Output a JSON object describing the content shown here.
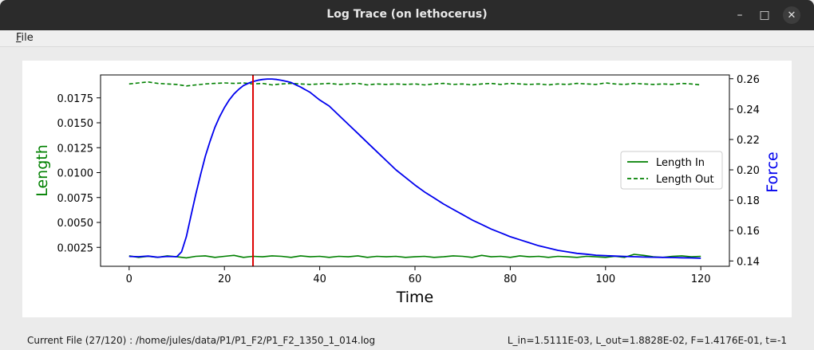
{
  "window": {
    "title": "Log Trace (on lethocerus)",
    "controls": {
      "minimize": "–",
      "maximize": "□",
      "close": "✕"
    }
  },
  "menu": {
    "file_underlined": "F",
    "file_rest": "ile"
  },
  "status": {
    "current_file": "Current File (27/120) : /home/jules/data/P1/P1_F2/P1_F2_1350_1_014.log",
    "values": "L_in=1.5111E-03, L_out=1.8828E-02, F=1.4176E-01, t=-1"
  },
  "chart_data": {
    "type": "line",
    "xlabel": "Time",
    "ylabel_left": "Length",
    "ylabel_right": "Force",
    "xlim": [
      -6,
      126
    ],
    "ylim_left": [
      0.0006,
      0.0198
    ],
    "ylim_right": [
      0.1365,
      0.2625
    ],
    "xticks": [
      0,
      20,
      40,
      60,
      80,
      100,
      120
    ],
    "xtick_labels": [
      "0",
      "20",
      "40",
      "60",
      "80",
      "100",
      "120"
    ],
    "yticks_left": [
      0.0025,
      0.005,
      0.0075,
      0.01,
      0.0125,
      0.015,
      0.0175
    ],
    "ytick_labels_left": [
      "0.0025",
      "0.0050",
      "0.0075",
      "0.0100",
      "0.0125",
      "0.0150",
      "0.0175"
    ],
    "yticks_right": [
      0.14,
      0.16,
      0.18,
      0.2,
      0.22,
      0.24,
      0.26
    ],
    "ytick_labels_right": [
      "0.14",
      "0.16",
      "0.18",
      "0.20",
      "0.22",
      "0.24",
      "0.26"
    ],
    "grid": false,
    "legend_placement": "center-right",
    "cursor_x": 26,
    "colors": {
      "length": "#008000",
      "force": "#0000ee",
      "cursor": "#dd0000"
    },
    "series": [
      {
        "name": "Length In",
        "axis": "left",
        "style": "solid",
        "x": [
          0,
          2,
          4,
          6,
          8,
          10,
          12,
          14,
          16,
          18,
          20,
          22,
          24,
          26,
          28,
          30,
          32,
          34,
          36,
          38,
          40,
          42,
          44,
          46,
          48,
          50,
          52,
          54,
          56,
          58,
          60,
          62,
          64,
          66,
          68,
          70,
          72,
          74,
          76,
          78,
          80,
          82,
          84,
          86,
          88,
          90,
          92,
          94,
          96,
          98,
          100,
          102,
          104,
          106,
          108,
          110,
          112,
          114,
          116,
          118,
          120
        ],
        "y": [
          0.00165,
          0.0015,
          0.0016,
          0.0015,
          0.00165,
          0.00155,
          0.00145,
          0.0016,
          0.00165,
          0.0015,
          0.0016,
          0.0017,
          0.0015,
          0.0016,
          0.00155,
          0.00165,
          0.0016,
          0.0015,
          0.00165,
          0.00155,
          0.0016,
          0.0015,
          0.0016,
          0.00155,
          0.00165,
          0.0015,
          0.0016,
          0.00155,
          0.0016,
          0.0015,
          0.00155,
          0.0016,
          0.0015,
          0.00155,
          0.00165,
          0.0016,
          0.0015,
          0.0017,
          0.00155,
          0.0016,
          0.0015,
          0.00165,
          0.00155,
          0.0016,
          0.0015,
          0.0016,
          0.00155,
          0.0015,
          0.0016,
          0.00155,
          0.0015,
          0.0016,
          0.0015,
          0.0018,
          0.0017,
          0.00155,
          0.0015,
          0.0016,
          0.00165,
          0.00155,
          0.0016
        ]
      },
      {
        "name": "Length Out",
        "axis": "left",
        "style": "dashed",
        "x": [
          0,
          2,
          4,
          6,
          8,
          10,
          12,
          14,
          16,
          18,
          20,
          22,
          24,
          26,
          28,
          30,
          32,
          34,
          36,
          38,
          40,
          42,
          44,
          46,
          48,
          50,
          52,
          54,
          56,
          58,
          60,
          62,
          64,
          66,
          68,
          70,
          72,
          74,
          76,
          78,
          80,
          82,
          84,
          86,
          88,
          90,
          92,
          94,
          96,
          98,
          100,
          102,
          104,
          106,
          108,
          110,
          112,
          114,
          116,
          118,
          120
        ],
        "y": [
          0.0189,
          0.019,
          0.0191,
          0.01895,
          0.0189,
          0.01885,
          0.0187,
          0.0188,
          0.0189,
          0.01895,
          0.019,
          0.01895,
          0.019,
          0.0189,
          0.01895,
          0.0188,
          0.0189,
          0.01895,
          0.0189,
          0.01885,
          0.0189,
          0.01895,
          0.01885,
          0.0189,
          0.01895,
          0.0188,
          0.0189,
          0.01885,
          0.0189,
          0.01885,
          0.0189,
          0.0188,
          0.0189,
          0.01895,
          0.01885,
          0.0189,
          0.0188,
          0.0189,
          0.01895,
          0.01885,
          0.01895,
          0.0189,
          0.01885,
          0.0189,
          0.0188,
          0.0189,
          0.01885,
          0.01895,
          0.0189,
          0.01885,
          0.019,
          0.0189,
          0.01885,
          0.01895,
          0.0189,
          0.01885,
          0.0189,
          0.01885,
          0.01895,
          0.0189,
          0.0188
        ]
      },
      {
        "name": "",
        "axis": "right",
        "style": "solid",
        "x": [
          0,
          2,
          4,
          6,
          8,
          10,
          11,
          12,
          13,
          14,
          15,
          16,
          17,
          18,
          19,
          20,
          21,
          22,
          23,
          24,
          25,
          26,
          27,
          28,
          29,
          30,
          31,
          32,
          33,
          34,
          35,
          36,
          38,
          40,
          42,
          44,
          46,
          48,
          50,
          52,
          54,
          56,
          58,
          60,
          62,
          64,
          66,
          68,
          70,
          72,
          74,
          76,
          78,
          80,
          82,
          84,
          86,
          88,
          90,
          92,
          94,
          96,
          98,
          100,
          102,
          104,
          106,
          108,
          110,
          112,
          114,
          116,
          118,
          120
        ],
        "y": [
          0.143,
          0.1428,
          0.1432,
          0.1425,
          0.143,
          0.1428,
          0.146,
          0.156,
          0.17,
          0.184,
          0.197,
          0.209,
          0.219,
          0.228,
          0.235,
          0.241,
          0.246,
          0.25,
          0.253,
          0.2555,
          0.257,
          0.2582,
          0.259,
          0.2595,
          0.2598,
          0.2598,
          0.2595,
          0.259,
          0.2583,
          0.2575,
          0.256,
          0.2545,
          0.251,
          0.246,
          0.242,
          0.236,
          0.23,
          0.224,
          0.218,
          0.212,
          0.206,
          0.2,
          0.195,
          0.19,
          0.1855,
          0.1815,
          0.1775,
          0.174,
          0.1705,
          0.167,
          0.164,
          0.161,
          0.1585,
          0.156,
          0.154,
          0.152,
          0.15,
          0.1485,
          0.147,
          0.146,
          0.145,
          0.1445,
          0.1438,
          0.1435,
          0.1432,
          0.143,
          0.1428,
          0.1426,
          0.1425,
          0.1424,
          0.1423,
          0.1421,
          0.142,
          0.1418
        ]
      }
    ]
  }
}
